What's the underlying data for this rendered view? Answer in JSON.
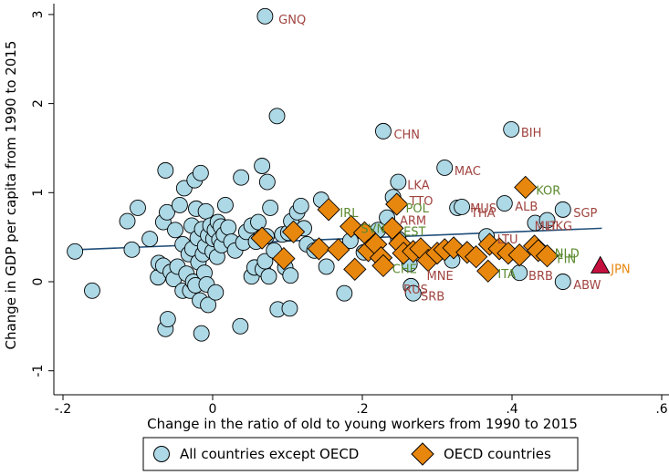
{
  "chart_data": {
    "type": "scatter",
    "title": "",
    "xlabel": "Change in the ratio of old to young workers from 1990 to 2015",
    "ylabel": "Change in GDP per capita from 1990 to 2015",
    "xlim": [
      -0.2,
      0.6
    ],
    "ylim": [
      -1,
      3
    ],
    "xticks": [
      -0.2,
      0,
      0.2,
      0.4,
      0.6
    ],
    "xtick_labels": [
      "-.2",
      "0",
      ".2",
      ".4",
      ".6"
    ],
    "yticks": [
      -1,
      0,
      1,
      2,
      3
    ],
    "ytick_labels": [
      "-1",
      "0",
      "1",
      "2",
      "3"
    ],
    "grid": false,
    "legend_position": "bottom",
    "colors": {
      "non_oecd_fill": "#add8e6",
      "oecd_fill": "#e8870e",
      "japan_fill": "#c4103e",
      "fit_line": "#1f4e79",
      "label_non_oecd": "#a0433f",
      "label_oecd": "#5a8a2e",
      "label_japan": "#e8870e"
    },
    "fit_line": {
      "x": [
        -0.18,
        0.52
      ],
      "y": [
        0.36,
        0.6
      ]
    },
    "series": [
      {
        "name": "All countries except OECD",
        "marker": "circle",
        "points": [
          [
            -0.184,
            0.34
          ],
          [
            -0.161,
            -0.1
          ],
          [
            -0.114,
            0.68
          ],
          [
            -0.108,
            0.36
          ],
          [
            -0.1,
            0.83
          ],
          [
            -0.084,
            0.48
          ],
          [
            -0.073,
            0.05
          ],
          [
            -0.072,
            0.21
          ],
          [
            -0.066,
            0.67
          ],
          [
            -0.066,
            0.18
          ],
          [
            -0.063,
            1.25
          ],
          [
            -0.063,
            -0.53
          ],
          [
            -0.061,
            0.78
          ],
          [
            -0.06,
            -0.42
          ],
          [
            -0.056,
            0.11
          ],
          [
            -0.052,
            0.03
          ],
          [
            -0.05,
            0.58
          ],
          [
            -0.047,
            0.17
          ],
          [
            -0.044,
            0.86
          ],
          [
            -0.04,
            -0.1
          ],
          [
            -0.04,
            0.42
          ],
          [
            -0.038,
            1.05
          ],
          [
            -0.035,
            0.09
          ],
          [
            -0.032,
            0.31
          ],
          [
            -0.03,
            -0.1
          ],
          [
            -0.028,
            0.63
          ],
          [
            -0.027,
            0.37
          ],
          [
            -0.026,
            0.0
          ],
          [
            -0.024,
            1.14
          ],
          [
            -0.023,
            -0.04
          ],
          [
            -0.022,
            0.82
          ],
          [
            -0.02,
            0.49
          ],
          [
            -0.019,
            0.22
          ],
          [
            -0.017,
            -0.21
          ],
          [
            -0.016,
            1.22
          ],
          [
            -0.015,
            -0.58
          ],
          [
            -0.014,
            0.59
          ],
          [
            -0.013,
            0.31
          ],
          [
            -0.011,
            0.1
          ],
          [
            -0.01,
            0.4
          ],
          [
            -0.009,
            0.79
          ],
          [
            -0.008,
            -0.03
          ],
          [
            -0.006,
            0.52
          ],
          [
            -0.006,
            -0.26
          ],
          [
            -0.003,
            0.63
          ],
          [
            0.0,
            0.34
          ],
          [
            0.001,
            0.48
          ],
          [
            0.003,
            0.58
          ],
          [
            0.004,
            -0.12
          ],
          [
            0.006,
            0.28
          ],
          [
            0.007,
            0.67
          ],
          [
            0.009,
            0.47
          ],
          [
            0.011,
            0.62
          ],
          [
            0.012,
            0.41
          ],
          [
            0.015,
            0.53
          ],
          [
            0.017,
            0.86
          ],
          [
            0.021,
            0.61
          ],
          [
            0.025,
            0.45
          ],
          [
            0.03,
            0.35
          ],
          [
            0.037,
            -0.5
          ],
          [
            0.038,
            1.17
          ],
          [
            0.041,
            0.44
          ],
          [
            0.045,
            0.56
          ],
          [
            0.052,
            0.06
          ],
          [
            0.052,
            0.63
          ],
          [
            0.056,
            0.16
          ],
          [
            0.058,
            0.45
          ],
          [
            0.061,
            0.67
          ],
          [
            0.066,
            1.3
          ],
          [
            0.067,
            0.14
          ],
          [
            0.07,
            2.98
          ],
          [
            0.07,
            0.23
          ],
          [
            0.072,
            0.51
          ],
          [
            0.073,
            1.12
          ],
          [
            0.075,
            0.06
          ],
          [
            0.077,
            0.83
          ],
          [
            0.082,
            0.35
          ],
          [
            0.086,
            1.86
          ],
          [
            0.087,
            -0.31
          ],
          [
            0.093,
            0.53
          ],
          [
            0.097,
            0.16
          ],
          [
            0.101,
            0.55
          ],
          [
            0.103,
            -0.3
          ],
          [
            0.104,
            0.07
          ],
          [
            0.105,
            0.68
          ],
          [
            0.113,
            0.78
          ],
          [
            0.118,
            0.85
          ],
          [
            0.122,
            0.6
          ],
          [
            0.126,
            0.42
          ],
          [
            0.136,
            0.35
          ],
          [
            0.145,
            0.92
          ],
          [
            0.152,
            0.17
          ],
          [
            0.176,
            -0.13
          ],
          [
            0.184,
            0.46
          ],
          [
            0.202,
            0.33
          ],
          [
            0.221,
            0.58
          ],
          [
            0.228,
            1.69
          ],
          [
            0.233,
            0.72
          ],
          [
            0.241,
            0.95
          ],
          [
            0.248,
            1.12
          ],
          [
            0.248,
            0.48
          ],
          [
            0.255,
            0.35
          ],
          [
            0.263,
            0.2
          ],
          [
            0.265,
            -0.05
          ],
          [
            0.268,
            -0.13
          ],
          [
            0.31,
            1.28
          ],
          [
            0.32,
            0.24
          ],
          [
            0.327,
            0.83
          ],
          [
            0.333,
            0.84
          ],
          [
            0.366,
            0.51
          ],
          [
            0.39,
            0.88
          ],
          [
            0.399,
            1.71
          ],
          [
            0.41,
            0.1
          ],
          [
            0.431,
            0.66
          ],
          [
            0.447,
            0.69
          ],
          [
            0.468,
            0.81
          ],
          [
            0.468,
            0.0
          ]
        ]
      },
      {
        "name": "OECD countries",
        "marker": "diamond",
        "points": [
          [
            0.066,
            0.49
          ],
          [
            0.095,
            0.26
          ],
          [
            0.108,
            0.56
          ],
          [
            0.142,
            0.37
          ],
          [
            0.155,
            0.81
          ],
          [
            0.168,
            0.36
          ],
          [
            0.185,
            0.62
          ],
          [
            0.19,
            0.14
          ],
          [
            0.203,
            0.55
          ],
          [
            0.208,
            0.35
          ],
          [
            0.218,
            0.42
          ],
          [
            0.225,
            0.27
          ],
          [
            0.228,
            0.18
          ],
          [
            0.24,
            0.6
          ],
          [
            0.246,
            0.87
          ],
          [
            0.25,
            0.43
          ],
          [
            0.255,
            0.32
          ],
          [
            0.268,
            0.34
          ],
          [
            0.278,
            0.37
          ],
          [
            0.288,
            0.24
          ],
          [
            0.3,
            0.32
          ],
          [
            0.31,
            0.36
          ],
          [
            0.322,
            0.38
          ],
          [
            0.34,
            0.33
          ],
          [
            0.352,
            0.28
          ],
          [
            0.368,
            0.12
          ],
          [
            0.37,
            0.42
          ],
          [
            0.383,
            0.37
          ],
          [
            0.395,
            0.32
          ],
          [
            0.41,
            0.3
          ],
          [
            0.418,
            1.06
          ],
          [
            0.43,
            0.4
          ],
          [
            0.435,
            0.35
          ],
          [
            0.447,
            0.29
          ]
        ]
      },
      {
        "name": "",
        "marker": "triangle",
        "points": [
          [
            0.518,
            0.18
          ]
        ]
      }
    ],
    "labels": [
      {
        "text": "GNQ",
        "x": 0.088,
        "y": 2.95,
        "group": "non_oecd"
      },
      {
        "text": "CHN",
        "x": 0.242,
        "y": 1.66,
        "group": "non_oecd"
      },
      {
        "text": "BIH",
        "x": 0.412,
        "y": 1.68,
        "group": "non_oecd"
      },
      {
        "text": "MAC",
        "x": 0.323,
        "y": 1.25,
        "group": "non_oecd"
      },
      {
        "text": "LKA",
        "x": 0.26,
        "y": 1.09,
        "group": "non_oecd"
      },
      {
        "text": "TTO",
        "x": 0.263,
        "y": 0.91,
        "group": "non_oecd"
      },
      {
        "text": "ALB",
        "x": 0.404,
        "y": 0.85,
        "group": "non_oecd"
      },
      {
        "text": "MUS",
        "x": 0.344,
        "y": 0.83,
        "group": "non_oecd"
      },
      {
        "text": "THA",
        "x": 0.345,
        "y": 0.78,
        "group": "non_oecd"
      },
      {
        "text": "SGP",
        "x": 0.482,
        "y": 0.78,
        "group": "non_oecd"
      },
      {
        "text": "ARM",
        "x": 0.25,
        "y": 0.69,
        "group": "non_oecd"
      },
      {
        "text": "MLT",
        "x": 0.43,
        "y": 0.63,
        "group": "non_oecd"
      },
      {
        "text": "HKG",
        "x": 0.446,
        "y": 0.63,
        "group": "non_oecd"
      },
      {
        "text": "LTU",
        "x": 0.38,
        "y": 0.48,
        "group": "non_oecd"
      },
      {
        "text": "BRB",
        "x": 0.422,
        "y": 0.07,
        "group": "non_oecd"
      },
      {
        "text": "ABW",
        "x": 0.482,
        "y": -0.03,
        "group": "non_oecd"
      },
      {
        "text": "MNE",
        "x": 0.286,
        "y": 0.07,
        "group": "non_oecd"
      },
      {
        "text": "RUS",
        "x": 0.255,
        "y": -0.08,
        "group": "non_oecd"
      },
      {
        "text": "SRB",
        "x": 0.278,
        "y": -0.16,
        "group": "non_oecd"
      },
      {
        "text": "KOR",
        "x": 0.432,
        "y": 1.03,
        "group": "oecd"
      },
      {
        "text": "IRL",
        "x": 0.17,
        "y": 0.78,
        "group": "oecd"
      },
      {
        "text": "POL",
        "x": 0.258,
        "y": 0.83,
        "group": "oecd"
      },
      {
        "text": "EST",
        "x": 0.255,
        "y": 0.57,
        "group": "oecd"
      },
      {
        "text": "SVN",
        "x": 0.198,
        "y": 0.6,
        "group": "oecd"
      },
      {
        "text": "NLD",
        "x": 0.457,
        "y": 0.32,
        "group": "oecd"
      },
      {
        "text": "FIN",
        "x": 0.46,
        "y": 0.26,
        "group": "oecd"
      },
      {
        "text": "ITA",
        "x": 0.381,
        "y": 0.09,
        "group": "oecd"
      },
      {
        "text": "CHE",
        "x": 0.24,
        "y": 0.15,
        "group": "oecd"
      },
      {
        "text": "JPN",
        "x": 0.532,
        "y": 0.15,
        "group": "japan"
      }
    ]
  },
  "legend": {
    "items": [
      {
        "label": "All countries except OECD"
      },
      {
        "label": "OECD countries"
      }
    ]
  }
}
